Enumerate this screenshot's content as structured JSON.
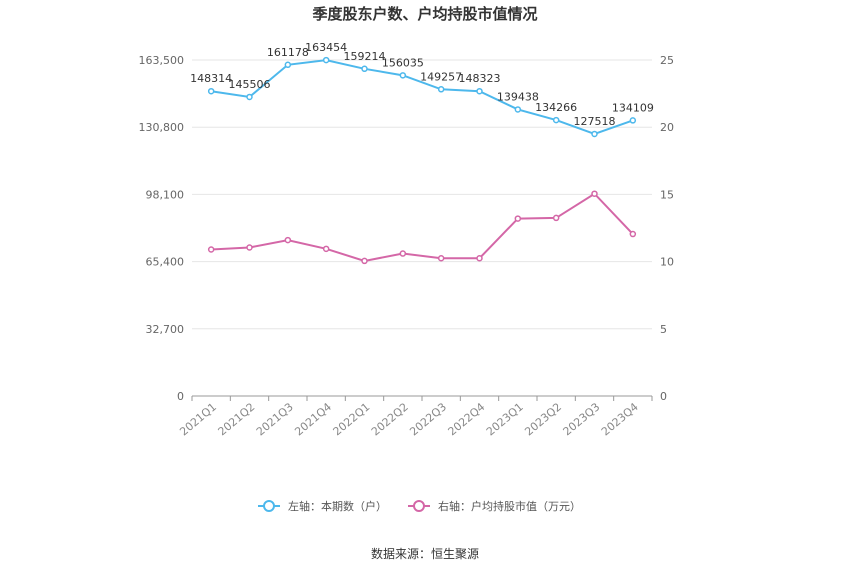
{
  "title": "季度股东户数、户均持股市值情况",
  "source": "数据来源：恒生聚源",
  "chart_data": {
    "type": "line",
    "categories": [
      "2021Q1",
      "2021Q2",
      "2021Q3",
      "2021Q4",
      "2022Q1",
      "2022Q2",
      "2022Q3",
      "2022Q4",
      "2023Q1",
      "2023Q2",
      "2023Q3",
      "2023Q4"
    ],
    "series": [
      {
        "name": "左轴：本期数（户）",
        "axis": "left",
        "color": "#4db8ec",
        "values": [
          148314,
          145506,
          161178,
          163454,
          159214,
          156035,
          149257,
          148323,
          139438,
          134266,
          127518,
          134109
        ],
        "labels": [
          "148314",
          "145506",
          "161178",
          "163454",
          "159214",
          "156035",
          "149257",
          "148323",
          "139438",
          "134266",
          "127518",
          "134109"
        ]
      },
      {
        "name": "右轴：户均持股市值（万元）",
        "axis": "right",
        "color": "#d467a7",
        "values": [
          10.9,
          11.05,
          11.6,
          10.95,
          10.05,
          10.6,
          10.25,
          10.25,
          13.2,
          13.25,
          15.05,
          12.05
        ]
      }
    ],
    "left_axis": {
      "min": 0,
      "max": 163500,
      "ticks": [
        "0",
        "32,700",
        "65,400",
        "98,100",
        "130,800",
        "163,500"
      ]
    },
    "right_axis": {
      "min": 0,
      "max": 25,
      "ticks": [
        "0",
        "5",
        "10",
        "15",
        "20",
        "25"
      ]
    },
    "grid": true,
    "legend_position": "bottom"
  }
}
